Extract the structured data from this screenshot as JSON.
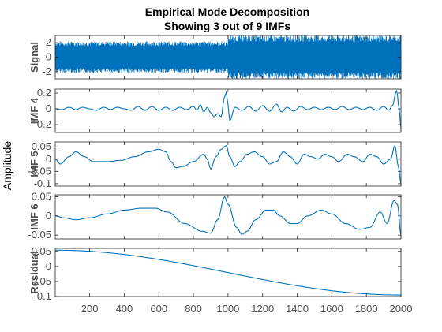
{
  "chart_data": {
    "type": "line",
    "title": "Empirical Mode Decomposition",
    "subtitle": "Showing 3 out of 9 IMFs",
    "ylabel": "Amplitude",
    "xlim": [
      1,
      2000
    ],
    "xticks": [
      "200",
      "400",
      "600",
      "800",
      "1000",
      "1200",
      "1400",
      "1600",
      "1800",
      "2000"
    ],
    "xtick_values": [
      200,
      400,
      600,
      800,
      1000,
      1200,
      1400,
      1600,
      1800,
      2000
    ],
    "grid": false,
    "line_color": "#0072bd",
    "panels": [
      {
        "name": "Signal",
        "ylim": [
          -3,
          3
        ],
        "yticks": [
          "2",
          "0",
          "-2"
        ],
        "ytick_values": [
          2,
          0,
          -2
        ],
        "segments": [
          {
            "x_start": 1,
            "x_end": 1000,
            "amplitude_range": [
              -2.2,
              2.2
            ],
            "character": "dense oscillation"
          },
          {
            "x_start": 1000,
            "x_end": 2000,
            "amplitude_range": [
              -3,
              3
            ],
            "character": "dense oscillation with spikes"
          }
        ]
      },
      {
        "name": "IMF 4",
        "ylim": [
          -0.3,
          0.25
        ],
        "yticks": [
          "0.2",
          "0",
          "-0.2"
        ],
        "ytick_values": [
          0.2,
          0,
          -0.2
        ],
        "points": [
          [
            1,
            0
          ],
          [
            40,
            -0.01
          ],
          [
            80,
            0.02
          ],
          [
            120,
            -0.01
          ],
          [
            160,
            0.02
          ],
          [
            200,
            0
          ],
          [
            240,
            -0.02
          ],
          [
            280,
            0.02
          ],
          [
            320,
            -0.01
          ],
          [
            360,
            0.02
          ],
          [
            400,
            0
          ],
          [
            440,
            -0.02
          ],
          [
            480,
            0.03
          ],
          [
            520,
            -0.02
          ],
          [
            560,
            0.03
          ],
          [
            600,
            -0.02
          ],
          [
            640,
            0.02
          ],
          [
            680,
            -0.02
          ],
          [
            720,
            0.02
          ],
          [
            760,
            -0.01
          ],
          [
            800,
            0.03
          ],
          [
            820,
            -0.02
          ],
          [
            840,
            0.05
          ],
          [
            860,
            -0.04
          ],
          [
            880,
            0.02
          ],
          [
            900,
            -0.05
          ],
          [
            920,
            -0.1
          ],
          [
            940,
            -0.06
          ],
          [
            960,
            -0.1
          ],
          [
            980,
            0.15
          ],
          [
            990,
            0.21
          ],
          [
            1000,
            0.05
          ],
          [
            1010,
            -0.15
          ],
          [
            1040,
            0.02
          ],
          [
            1080,
            -0.02
          ],
          [
            1120,
            0.03
          ],
          [
            1160,
            -0.03
          ],
          [
            1200,
            0.04
          ],
          [
            1240,
            -0.03
          ],
          [
            1280,
            0.06
          ],
          [
            1310,
            -0.04
          ],
          [
            1340,
            0.02
          ],
          [
            1380,
            -0.03
          ],
          [
            1420,
            0.03
          ],
          [
            1460,
            -0.01
          ],
          [
            1500,
            0.02
          ],
          [
            1540,
            -0.01
          ],
          [
            1580,
            0.02
          ],
          [
            1620,
            -0.01
          ],
          [
            1660,
            0.03
          ],
          [
            1700,
            -0.01
          ],
          [
            1740,
            0.02
          ],
          [
            1780,
            -0.01
          ],
          [
            1820,
            0.02
          ],
          [
            1860,
            -0.02
          ],
          [
            1900,
            0.03
          ],
          [
            1930,
            -0.02
          ],
          [
            1950,
            0.04
          ],
          [
            1975,
            0.23
          ],
          [
            1990,
            0
          ],
          [
            2000,
            -0.25
          ]
        ]
      },
      {
        "name": "IMF 5",
        "ylim": [
          -0.11,
          0.07
        ],
        "yticks": [
          "0.05",
          "0",
          "-0.05",
          "-0.1"
        ],
        "ytick_values": [
          0.05,
          0,
          -0.05,
          -0.1
        ],
        "points": [
          [
            1,
            0
          ],
          [
            30,
            -0.02
          ],
          [
            80,
            0.01
          ],
          [
            120,
            0.03
          ],
          [
            170,
            0.01
          ],
          [
            220,
            -0.01
          ],
          [
            300,
            -0.01
          ],
          [
            380,
            -0.005
          ],
          [
            460,
            0.01
          ],
          [
            540,
            0.03
          ],
          [
            600,
            0.04
          ],
          [
            640,
            0.03
          ],
          [
            670,
            -0.01
          ],
          [
            700,
            -0.035
          ],
          [
            740,
            -0.03
          ],
          [
            800,
            -0.01
          ],
          [
            860,
            0.02
          ],
          [
            880,
            0
          ],
          [
            900,
            -0.04
          ],
          [
            930,
            0.01
          ],
          [
            960,
            0.04
          ],
          [
            990,
            0.055
          ],
          [
            1010,
            0.01
          ],
          [
            1040,
            -0.03
          ],
          [
            1070,
            -0.01
          ],
          [
            1110,
            0.02
          ],
          [
            1150,
            0.03
          ],
          [
            1200,
            0.01
          ],
          [
            1240,
            -0.02
          ],
          [
            1280,
            -0.01
          ],
          [
            1320,
            0.03
          ],
          [
            1360,
            0.01
          ],
          [
            1400,
            -0.02
          ],
          [
            1440,
            0.02
          ],
          [
            1480,
            0.01
          ],
          [
            1520,
            0
          ],
          [
            1560,
            0.02
          ],
          [
            1600,
            0.01
          ],
          [
            1640,
            -0.01
          ],
          [
            1690,
            0.02
          ],
          [
            1730,
            0.01
          ],
          [
            1780,
            -0.01
          ],
          [
            1820,
            0.02
          ],
          [
            1860,
            0.01
          ],
          [
            1900,
            -0.02
          ],
          [
            1940,
            0
          ],
          [
            1965,
            0.055
          ],
          [
            1985,
            -0.03
          ],
          [
            2000,
            -0.1
          ]
        ]
      },
      {
        "name": "IMF 6",
        "ylim": [
          -0.06,
          0.055
        ],
        "yticks": [
          "0.05",
          "0",
          "-0.05"
        ],
        "ytick_values": [
          0.05,
          0,
          -0.05
        ],
        "points": [
          [
            1,
            0
          ],
          [
            50,
            -0.005
          ],
          [
            120,
            -0.01
          ],
          [
            200,
            -0.005
          ],
          [
            300,
            0.005
          ],
          [
            400,
            0.015
          ],
          [
            500,
            0.02
          ],
          [
            580,
            0.02
          ],
          [
            650,
            0.01
          ],
          [
            750,
            -0.02
          ],
          [
            850,
            -0.04
          ],
          [
            900,
            -0.045
          ],
          [
            940,
            -0.01
          ],
          [
            980,
            0.05
          ],
          [
            1000,
            0.03
          ],
          [
            1050,
            -0.03
          ],
          [
            1080,
            -0.048
          ],
          [
            1110,
            -0.04
          ],
          [
            1160,
            -0.01
          ],
          [
            1220,
            0.015
          ],
          [
            1260,
            0.015
          ],
          [
            1300,
            0
          ],
          [
            1360,
            -0.02
          ],
          [
            1400,
            -0.02
          ],
          [
            1460,
            0
          ],
          [
            1540,
            0.015
          ],
          [
            1600,
            0.005
          ],
          [
            1680,
            -0.02
          ],
          [
            1760,
            -0.035
          ],
          [
            1820,
            -0.03
          ],
          [
            1880,
            0.01
          ],
          [
            1920,
            -0.02
          ],
          [
            1960,
            0.04
          ],
          [
            1980,
            0.03
          ],
          [
            2000,
            -0.05
          ]
        ]
      },
      {
        "name": "Residual",
        "ylim": [
          -0.1,
          0.06
        ],
        "yticks": [
          "0.05",
          "0",
          "-0.05",
          "-0.1"
        ],
        "ytick_values": [
          0.05,
          0,
          -0.05,
          -0.1
        ],
        "residual_curve": {
          "start": 0.054,
          "end": -0.095
        }
      }
    ]
  }
}
